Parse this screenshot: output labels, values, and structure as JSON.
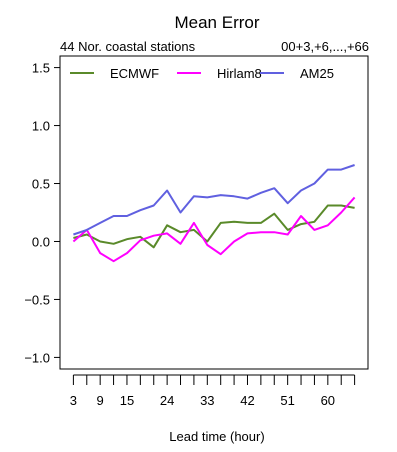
{
  "chart_data": {
    "type": "line",
    "title": "Mean Error",
    "subtitle_left": "44 Nor. coastal stations",
    "subtitle_right": "00+3,+6,...,+66",
    "xlabel": "Lead time (hour)",
    "ylabel": "",
    "xlim": [
      0,
      69
    ],
    "ylim": [
      -1.1,
      1.6
    ],
    "x_tick_labels": [
      3,
      9,
      15,
      24,
      33,
      42,
      51,
      60
    ],
    "y_tick_labels": [
      "1.5",
      "1.0",
      "0.5",
      "0.0",
      "−0.5",
      "−1.0"
    ],
    "y_tick_values": [
      1.5,
      1.0,
      0.5,
      0.0,
      -0.5,
      -1.0
    ],
    "grid": false,
    "legend_position": "top",
    "x": [
      3,
      6,
      9,
      12,
      15,
      18,
      21,
      24,
      27,
      30,
      33,
      36,
      39,
      42,
      45,
      48,
      51,
      54,
      57,
      60,
      63,
      66
    ],
    "series": [
      {
        "name": "ECMWF",
        "color": "#5a8a2a",
        "values": [
          0.03,
          0.06,
          0.0,
          -0.02,
          0.02,
          0.04,
          -0.05,
          0.14,
          0.08,
          0.1,
          0.0,
          0.16,
          0.17,
          0.16,
          0.16,
          0.24,
          0.1,
          0.15,
          0.17,
          0.31,
          0.31,
          0.29
        ]
      },
      {
        "name": "Hirlam8",
        "color": "#ff00ff",
        "values": [
          0.0,
          0.1,
          -0.1,
          -0.17,
          -0.1,
          0.01,
          0.05,
          0.07,
          -0.02,
          0.16,
          -0.03,
          -0.11,
          0.0,
          0.07,
          0.08,
          0.08,
          0.06,
          0.22,
          0.1,
          0.14,
          0.25,
          0.38
        ]
      },
      {
        "name": "AM25",
        "color": "#6060e0",
        "values": [
          0.06,
          0.1,
          0.16,
          0.22,
          0.22,
          0.27,
          0.31,
          0.44,
          0.25,
          0.39,
          0.38,
          0.4,
          0.39,
          0.37,
          0.42,
          0.46,
          0.33,
          0.44,
          0.5,
          0.62,
          0.62,
          0.66
        ]
      }
    ]
  }
}
